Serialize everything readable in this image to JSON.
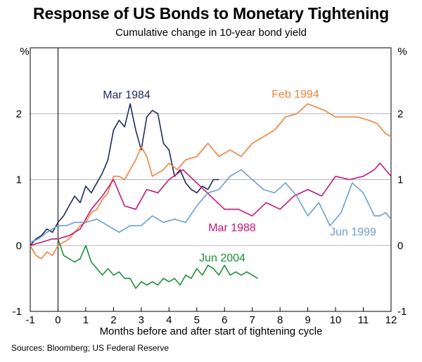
{
  "chart_data": {
    "type": "line",
    "title": "Response of US Bonds to Monetary Tightening",
    "subtitle": "Cumulative change in 10-year bond yield",
    "xlabel": "Months before and after start of tightening cycle",
    "ylabel_left": "%",
    "ylabel_right": "%",
    "source": "Sources: Bloomberg; US Federal Reserve",
    "xlim": [
      -1,
      12
    ],
    "ylim": [
      -1,
      3
    ],
    "x_ticks": [
      -1,
      0,
      1,
      2,
      3,
      4,
      5,
      6,
      7,
      8,
      9,
      10,
      11,
      12
    ],
    "y_ticks": [
      -1,
      0,
      1,
      2
    ],
    "grid": true,
    "series": [
      {
        "name": "Mar 1984",
        "label": "Mar 1984",
        "color": "#1f2a5c",
        "x": [
          -1,
          -0.8,
          -0.6,
          -0.4,
          -0.2,
          0,
          0.2,
          0.4,
          0.6,
          0.8,
          1,
          1.2,
          1.4,
          1.6,
          1.8,
          2,
          2.2,
          2.4,
          2.6,
          2.8,
          3,
          3.2,
          3.4,
          3.6,
          3.8,
          4,
          4.2,
          4.4,
          4.6,
          4.8,
          5,
          5.2,
          5.4,
          5.6,
          5.8
        ],
        "values": [
          0.0,
          0.1,
          0.15,
          0.25,
          0.2,
          0.35,
          0.45,
          0.6,
          0.75,
          0.65,
          0.9,
          0.8,
          0.95,
          1.1,
          1.3,
          1.75,
          1.9,
          1.8,
          2.15,
          1.75,
          1.45,
          1.95,
          2.05,
          2.0,
          1.55,
          1.45,
          1.05,
          1.15,
          0.95,
          0.85,
          0.8,
          0.9,
          0.85,
          1.0,
          1.0
        ]
      },
      {
        "name": "Feb 1994",
        "label": "Feb 1994",
        "color": "#f0823b",
        "x": [
          -1,
          -0.8,
          -0.6,
          -0.4,
          -0.2,
          0,
          0.2,
          0.4,
          0.6,
          0.8,
          1,
          1.2,
          1.4,
          1.6,
          1.8,
          2,
          2.2,
          2.4,
          2.6,
          2.8,
          3,
          3.2,
          3.4,
          3.6,
          3.8,
          4,
          4.3,
          4.6,
          5,
          5.4,
          5.8,
          6.2,
          6.6,
          7,
          7.4,
          7.8,
          8.2,
          8.6,
          9,
          9.3,
          9.6,
          10,
          10.4,
          10.8,
          11.2,
          11.5,
          11.8,
          12
        ],
        "values": [
          0.0,
          -0.15,
          -0.2,
          -0.1,
          -0.15,
          0.0,
          0.05,
          0.1,
          0.2,
          0.3,
          0.35,
          0.5,
          0.55,
          0.7,
          0.8,
          1.05,
          1.05,
          1.0,
          1.15,
          1.3,
          1.5,
          1.35,
          1.05,
          1.1,
          1.15,
          1.25,
          1.15,
          1.3,
          1.35,
          1.55,
          1.35,
          1.45,
          1.35,
          1.55,
          1.65,
          1.75,
          1.95,
          2.0,
          2.15,
          2.1,
          2.05,
          1.95,
          1.95,
          1.95,
          1.9,
          1.85,
          1.7,
          1.65
        ]
      },
      {
        "name": "Mar 1988",
        "label": "Mar 1988",
        "color": "#c2177a",
        "x": [
          -1,
          -0.6,
          -0.2,
          0,
          0.4,
          0.8,
          1.2,
          1.6,
          2,
          2.4,
          2.8,
          3.2,
          3.6,
          4,
          4.5,
          5,
          5.5,
          6,
          6.5,
          7,
          7.5,
          8,
          8.5,
          9,
          9.5,
          10,
          10.5,
          11,
          11.4,
          11.6,
          11.8,
          12
        ],
        "values": [
          0.0,
          0.05,
          0.1,
          0.1,
          0.15,
          0.25,
          0.55,
          0.75,
          1.0,
          0.6,
          0.55,
          0.85,
          0.8,
          1.0,
          1.15,
          0.95,
          0.75,
          0.55,
          0.55,
          0.45,
          0.65,
          0.55,
          0.75,
          0.85,
          0.75,
          1.05,
          1.0,
          1.05,
          1.15,
          1.25,
          1.15,
          1.05
        ]
      },
      {
        "name": "Jun 1999",
        "label": "Jun 1999",
        "color": "#6d9fd0",
        "x": [
          -1,
          -0.7,
          -0.4,
          0,
          0.3,
          0.6,
          1,
          1.4,
          1.8,
          2.2,
          2.6,
          3,
          3.4,
          3.8,
          4.2,
          4.6,
          5,
          5.4,
          5.8,
          6.2,
          6.6,
          7,
          7.4,
          7.8,
          8.2,
          8.6,
          9,
          9.4,
          9.8,
          10.2,
          10.6,
          11,
          11.4,
          11.6,
          11.8,
          12
        ],
        "values": [
          0.05,
          0.1,
          0.2,
          0.3,
          0.3,
          0.35,
          0.35,
          0.4,
          0.3,
          0.2,
          0.3,
          0.3,
          0.45,
          0.35,
          0.4,
          0.35,
          0.6,
          0.8,
          0.85,
          1.05,
          1.15,
          1.0,
          0.85,
          0.8,
          0.95,
          0.75,
          0.45,
          0.65,
          0.3,
          0.5,
          0.95,
          0.8,
          0.45,
          0.45,
          0.5,
          0.4
        ]
      },
      {
        "name": "Jun 2004",
        "label": "Jun 2004",
        "color": "#1f8f3a",
        "x": [
          0,
          0.2,
          0.4,
          0.6,
          0.8,
          1,
          1.2,
          1.4,
          1.6,
          1.8,
          2,
          2.2,
          2.4,
          2.6,
          2.8,
          3,
          3.2,
          3.4,
          3.6,
          3.8,
          4,
          4.2,
          4.4,
          4.6,
          4.8,
          5,
          5.2,
          5.4,
          5.6,
          5.8,
          6,
          6.2,
          6.4,
          6.6,
          6.8,
          7,
          7.2
        ],
        "values": [
          0.1,
          -0.15,
          -0.2,
          -0.25,
          -0.2,
          0.0,
          -0.25,
          -0.35,
          -0.45,
          -0.35,
          -0.45,
          -0.4,
          -0.5,
          -0.5,
          -0.65,
          -0.55,
          -0.6,
          -0.55,
          -0.6,
          -0.5,
          -0.55,
          -0.5,
          -0.6,
          -0.45,
          -0.5,
          -0.35,
          -0.45,
          -0.3,
          -0.35,
          -0.45,
          -0.3,
          -0.45,
          -0.4,
          -0.45,
          -0.4,
          -0.45,
          -0.5
        ]
      }
    ]
  }
}
